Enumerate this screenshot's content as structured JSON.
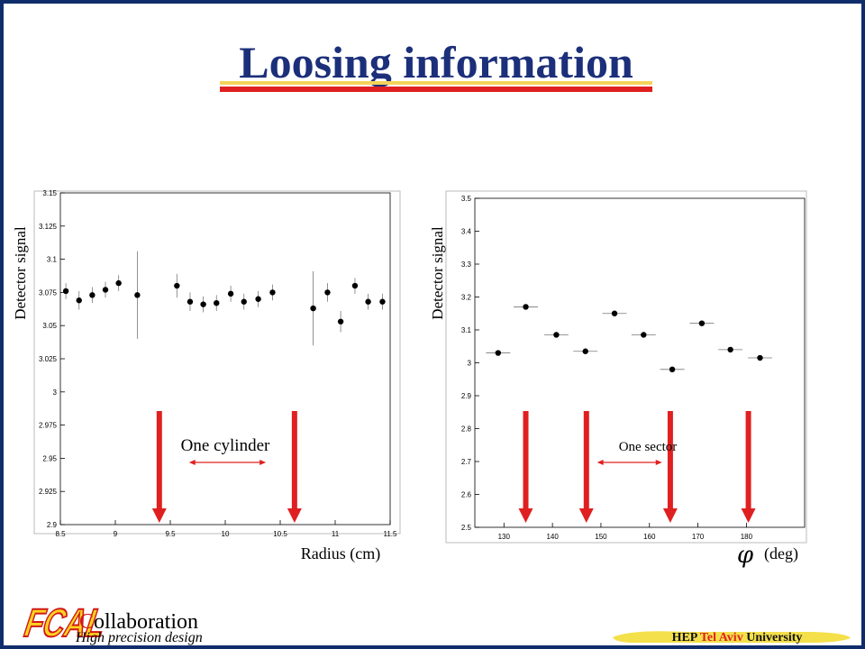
{
  "slide": {
    "title": "Loosing information",
    "footer": {
      "logo_text": "FCAL",
      "collab_initial": "C",
      "collab_rest": "ollaboration",
      "tagline": "High precision design",
      "univ_hep": "HEP",
      "univ_city": "Tel Aviv",
      "univ_name": "University"
    }
  },
  "colors": {
    "title": "#1c2f7a",
    "arrow": "#e02020",
    "frame": "#0f2d6b",
    "title_underline_top": "#f4d35a",
    "title_underline_bottom": "#e02020",
    "university_highlight": "#e02020"
  },
  "chart_data": [
    {
      "type": "scatter",
      "ylabel": "Detector signal",
      "xlabel": "Radius (cm)",
      "xlim": [
        8.5,
        11.5
      ],
      "ylim": [
        2.9,
        3.15
      ],
      "x_ticks": [
        8.5,
        9,
        9.5,
        10,
        10.5,
        11,
        11.5
      ],
      "x_tick_labels": [
        "8.5",
        "9",
        "9.5",
        "10",
        "10.5",
        "11",
        "11.5"
      ],
      "y_ticks": [
        2.9,
        2.925,
        2.95,
        2.975,
        3,
        3.025,
        3.05,
        3.075,
        3.1,
        3.125,
        3.15
      ],
      "y_tick_labels": [
        "2.9",
        "2.925",
        "2.95",
        "2.975",
        "3",
        "3.025",
        "3.05",
        "3.075",
        "3.1",
        "3.125",
        "3.15"
      ],
      "points": [
        {
          "x": 8.55,
          "y": 3.076,
          "err": 0.006
        },
        {
          "x": 8.67,
          "y": 3.069,
          "err": 0.007
        },
        {
          "x": 8.79,
          "y": 3.073,
          "err": 0.006
        },
        {
          "x": 8.91,
          "y": 3.077,
          "err": 0.006
        },
        {
          "x": 9.03,
          "y": 3.082,
          "err": 0.006
        },
        {
          "x": 9.2,
          "y": 3.073,
          "err": 0.033
        },
        {
          "x": 9.56,
          "y": 3.08,
          "err": 0.009
        },
        {
          "x": 9.68,
          "y": 3.068,
          "err": 0.007
        },
        {
          "x": 9.8,
          "y": 3.066,
          "err": 0.006
        },
        {
          "x": 9.92,
          "y": 3.067,
          "err": 0.006
        },
        {
          "x": 10.05,
          "y": 3.074,
          "err": 0.006
        },
        {
          "x": 10.17,
          "y": 3.068,
          "err": 0.006
        },
        {
          "x": 10.3,
          "y": 3.07,
          "err": 0.006
        },
        {
          "x": 10.43,
          "y": 3.075,
          "err": 0.006
        },
        {
          "x": 10.8,
          "y": 3.063,
          "err": 0.028
        },
        {
          "x": 10.93,
          "y": 3.075,
          "err": 0.007
        },
        {
          "x": 11.05,
          "y": 3.053,
          "err": 0.008
        },
        {
          "x": 11.18,
          "y": 3.08,
          "err": 0.006
        },
        {
          "x": 11.3,
          "y": 3.068,
          "err": 0.006
        },
        {
          "x": 11.43,
          "y": 3.068,
          "err": 0.006
        }
      ],
      "arrows_x": [
        9.4,
        10.63
      ],
      "annotation": "One cylinder",
      "span": [
        9.67,
        10.37
      ]
    },
    {
      "type": "scatter",
      "ylabel": "Detector signal",
      "xlabel": "(deg)",
      "xlabel_symbol": "φ",
      "xlim": [
        124,
        192
      ],
      "ylim": [
        2.5,
        3.5
      ],
      "x_ticks": [
        130,
        140,
        150,
        160,
        170,
        180
      ],
      "x_tick_labels": [
        "130",
        "140",
        "150",
        "160",
        "170",
        "180"
      ],
      "y_ticks": [
        2.5,
        2.6,
        2.7,
        2.8,
        2.9,
        3,
        3.1,
        3.2,
        3.3,
        3.4,
        3.5
      ],
      "y_tick_labels": [
        "2.5",
        "2.6",
        "2.7",
        "2.8",
        "2.9",
        "3",
        "3.1",
        "3.2",
        "3.3",
        "3.4",
        "3.5"
      ],
      "points": [
        {
          "x": 128.8,
          "y": 3.03,
          "xerr": 2.5
        },
        {
          "x": 134.5,
          "y": 3.17,
          "xerr": 2.5
        },
        {
          "x": 140.8,
          "y": 3.085,
          "xerr": 2.5
        },
        {
          "x": 146.8,
          "y": 3.035,
          "xerr": 2.5
        },
        {
          "x": 152.8,
          "y": 3.15,
          "xerr": 2.5
        },
        {
          "x": 158.8,
          "y": 3.085,
          "xerr": 2.5
        },
        {
          "x": 164.7,
          "y": 2.98,
          "xerr": 2.5
        },
        {
          "x": 170.8,
          "y": 3.12,
          "xerr": 2.5
        },
        {
          "x": 176.7,
          "y": 3.04,
          "xerr": 2.5
        },
        {
          "x": 182.8,
          "y": 3.015,
          "xerr": 2.5
        }
      ],
      "arrows_x": [
        134.5,
        147.0,
        164.3,
        180.4
      ],
      "annotation": "One sector",
      "span": [
        149.2,
        162.6
      ]
    }
  ]
}
